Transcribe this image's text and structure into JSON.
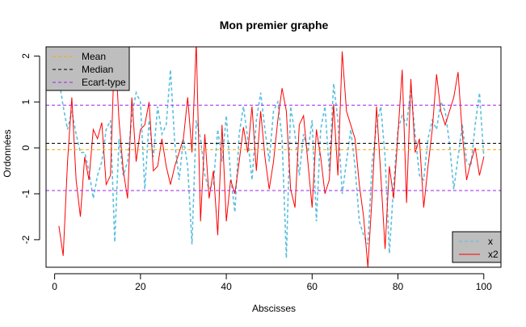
{
  "chart_data": {
    "type": "line",
    "title": "Mon premier graphe",
    "xlabel": "Abscisses",
    "ylabel": "Ordonnées",
    "xlim": [
      -2,
      104
    ],
    "ylim": [
      -2.6,
      2.2
    ],
    "x_ticks": [
      0,
      20,
      40,
      60,
      80,
      100
    ],
    "x_tick_labels": [
      "0",
      "20",
      "40",
      "60",
      "80",
      "100"
    ],
    "y_ticks": [
      -2,
      -1,
      0,
      1,
      2
    ],
    "y_tick_labels": [
      "-2",
      "-1",
      "0",
      "1",
      "2"
    ],
    "grid": false,
    "series": [
      {
        "name": "x",
        "color": "#5bc0de",
        "dash": "dashed",
        "x": [
          1,
          2,
          3,
          4,
          5,
          6,
          7,
          8,
          9,
          10,
          11,
          12,
          13,
          14,
          15,
          16,
          17,
          18,
          19,
          20,
          21,
          22,
          23,
          24,
          25,
          26,
          27,
          28,
          29,
          30,
          31,
          32,
          33,
          34,
          35,
          36,
          37,
          38,
          39,
          40,
          41,
          42,
          43,
          44,
          45,
          46,
          47,
          48,
          49,
          50,
          51,
          52,
          53,
          54,
          55,
          56,
          57,
          58,
          59,
          60,
          61,
          62,
          63,
          64,
          65,
          66,
          67,
          68,
          69,
          70,
          71,
          72,
          73,
          74,
          75,
          76,
          77,
          78,
          79,
          80,
          81,
          82,
          83,
          84,
          85,
          86,
          87,
          88,
          89,
          90,
          91,
          92,
          93,
          94,
          95,
          96,
          97,
          98,
          99,
          100
        ],
        "values": [
          1.5,
          0.9,
          0.4,
          0.8,
          0.3,
          -0.1,
          -0.1,
          -0.5,
          -1.1,
          -0.6,
          -0.3,
          0.4,
          0.6,
          -2.05,
          0.2,
          -0.6,
          -0.3,
          0.7,
          1.2,
          1.0,
          -0.9,
          0.6,
          -0.2,
          0.9,
          0.3,
          0.5,
          1.7,
          0.1,
          -0.7,
          0.2,
          -0.4,
          -2.1,
          0.6,
          0.2,
          -0.6,
          -0.9,
          -0.8,
          0.4,
          -0.3,
          0.7,
          -0.6,
          -1.4,
          0.3,
          0.9,
          0.2,
          -0.7,
          0.6,
          1.2,
          0.4,
          -0.3,
          0.8,
          1.0,
          0.2,
          -2.4,
          0.9,
          0.3,
          -0.6,
          0.3,
          -0.1,
          0.6,
          -1.6,
          0.4,
          0.9,
          -0.5,
          1.4,
          0.6,
          -1.0,
          -0.3,
          0.4,
          -0.4,
          -1.6,
          -1.9,
          -2.1,
          -0.3,
          0.5,
          0.9,
          -0.2,
          -2.3,
          -0.8,
          0.4,
          0.7,
          0.5,
          1.3,
          0.3,
          -0.6,
          -0.7,
          0.2,
          0.6,
          0.4,
          1.0,
          0.8,
          0.1,
          -0.9,
          -0.2,
          0.5,
          -0.3,
          -0.4,
          0.5,
          1.2,
          -0.2
        ]
      },
      {
        "name": "x2",
        "color": "#ff0000",
        "dash": "solid",
        "x": [
          1,
          2,
          3,
          4,
          5,
          6,
          7,
          8,
          9,
          10,
          11,
          12,
          13,
          14,
          15,
          16,
          17,
          18,
          19,
          20,
          21,
          22,
          23,
          24,
          25,
          26,
          27,
          28,
          29,
          30,
          31,
          32,
          33,
          34,
          35,
          36,
          37,
          38,
          39,
          40,
          41,
          42,
          43,
          44,
          45,
          46,
          47,
          48,
          49,
          50,
          51,
          52,
          53,
          54,
          55,
          56,
          57,
          58,
          59,
          60,
          61,
          62,
          63,
          64,
          65,
          66,
          67,
          68,
          69,
          70,
          71,
          72,
          73,
          74,
          75,
          76,
          77,
          78,
          79,
          80,
          81,
          82,
          83,
          84,
          85,
          86,
          87,
          88,
          89,
          90,
          91,
          92,
          93,
          94,
          95,
          96,
          97,
          98,
          99,
          100
        ],
        "values": [
          -1.7,
          -2.35,
          -0.3,
          1.1,
          -0.7,
          -1.5,
          -0.2,
          -0.7,
          0.4,
          0.2,
          0.55,
          -0.8,
          -0.6,
          2.3,
          0.6,
          -0.5,
          -1.1,
          1.1,
          -0.3,
          0.4,
          0.5,
          1.0,
          -0.5,
          -0.4,
          0.2,
          -0.4,
          -0.8,
          -0.4,
          -0.1,
          0.2,
          1.1,
          -0.1,
          2.3,
          -1.6,
          0.3,
          -1.1,
          -0.5,
          -1.9,
          0.5,
          -1.6,
          -0.7,
          -1.0,
          -0.3,
          0.45,
          -0.1,
          0.9,
          -0.5,
          0.8,
          -0.2,
          -0.9,
          -0.3,
          0.6,
          1.3,
          0.8,
          -0.9,
          -1.3,
          0.5,
          0.7,
          -0.3,
          -1.3,
          0.4,
          -0.2,
          -1.0,
          -0.7,
          0.95,
          -0.6,
          2.1,
          0.8,
          0.5,
          0.2,
          -0.8,
          -1.5,
          -2.6,
          -1.0,
          0.9,
          -0.6,
          -2.2,
          -0.4,
          -1.1,
          0.3,
          1.7,
          -1.2,
          1.5,
          -0.1,
          0.2,
          -1.3,
          -0.4,
          0.4,
          1.6,
          0.8,
          0.5,
          0.8,
          1.1,
          1.65,
          0.3,
          -0.7,
          -0.3,
          0.0,
          -0.6,
          -0.2
        ]
      }
    ],
    "reference_lines": [
      {
        "name": "Mean",
        "value": -0.04,
        "color": "#ffa500",
        "dash": "dashed"
      },
      {
        "name": "Median",
        "value": 0.1,
        "color": "#000000",
        "dash": "dashed"
      },
      {
        "name": "Ecart-type",
        "value": 0.93,
        "color": "#a020f0",
        "dash": "dashed"
      },
      {
        "name": "Ecart-type",
        "value": -0.93,
        "color": "#a020f0",
        "dash": "dashed"
      }
    ],
    "legends": [
      {
        "placement": "top-left",
        "background": "#bebebe",
        "entries": [
          {
            "label": "Mean",
            "color": "#ffa500",
            "dash": "dashed"
          },
          {
            "label": "Median",
            "color": "#000000",
            "dash": "dashed"
          },
          {
            "label": "Ecart-type",
            "color": "#a020f0",
            "dash": "dashed"
          }
        ]
      },
      {
        "placement": "bottom-right",
        "background": "#bebebe",
        "entries": [
          {
            "label": "x",
            "color": "#5bc0de",
            "dash": "dashed"
          },
          {
            "label": "x2",
            "color": "#ff0000",
            "dash": "solid"
          }
        ]
      }
    ]
  }
}
